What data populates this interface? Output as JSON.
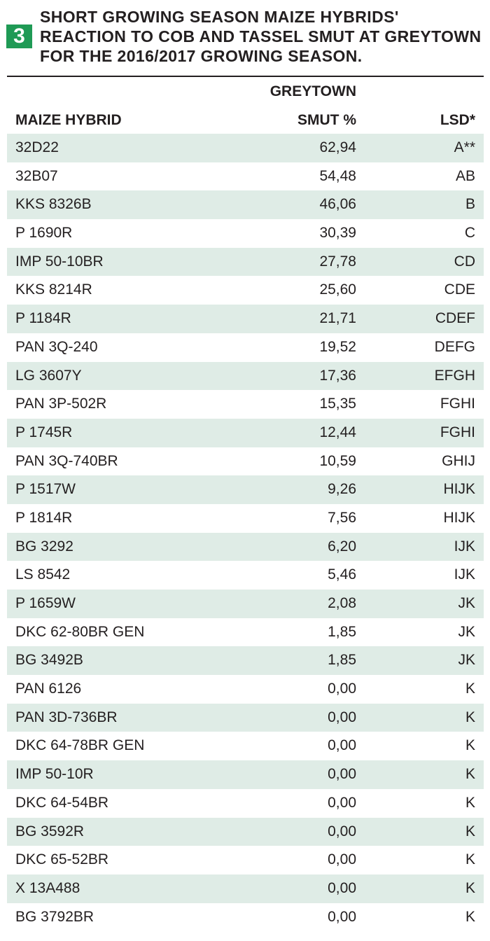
{
  "table": {
    "number": "3",
    "title": "SHORT GROWING SEASON MAIZE HYBRIDS' REACTION TO COB AND TASSEL SMUT AT GREYTOWN FOR THE 2016/2017 GROWING SEASON.",
    "accent_color": "#1f9a55",
    "row_shade_color": "#dfece6",
    "headers": {
      "location": "GREYTOWN",
      "hybrid": "MAIZE HYBRID",
      "smut": "SMUT %",
      "lsd": "LSD*"
    },
    "rows": [
      {
        "hybrid": "32D22",
        "smut": "62,94",
        "lsd": "A**"
      },
      {
        "hybrid": "32B07",
        "smut": "54,48",
        "lsd": "AB"
      },
      {
        "hybrid": "KKS 8326B",
        "smut": "46,06",
        "lsd": "B"
      },
      {
        "hybrid": "P 1690R",
        "smut": "30,39",
        "lsd": "C"
      },
      {
        "hybrid": "IMP 50-10BR",
        "smut": "27,78",
        "lsd": "CD"
      },
      {
        "hybrid": "KKS 8214R",
        "smut": "25,60",
        "lsd": "CDE"
      },
      {
        "hybrid": "P 1184R",
        "smut": "21,71",
        "lsd": "CDEF"
      },
      {
        "hybrid": "PAN 3Q-240",
        "smut": "19,52",
        "lsd": "DEFG"
      },
      {
        "hybrid": "LG 3607Y",
        "smut": "17,36",
        "lsd": "EFGH"
      },
      {
        "hybrid": "PAN 3P-502R",
        "smut": "15,35",
        "lsd": "FGHI"
      },
      {
        "hybrid": "P 1745R",
        "smut": "12,44",
        "lsd": "FGHI"
      },
      {
        "hybrid": "PAN 3Q-740BR",
        "smut": "10,59",
        "lsd": "GHIJ"
      },
      {
        "hybrid": "P 1517W",
        "smut": "9,26",
        "lsd": "HIJK"
      },
      {
        "hybrid": "P 1814R",
        "smut": "7,56",
        "lsd": "HIJK"
      },
      {
        "hybrid": "BG 3292",
        "smut": "6,20",
        "lsd": "IJK"
      },
      {
        "hybrid": "LS 8542",
        "smut": "5,46",
        "lsd": "IJK"
      },
      {
        "hybrid": "P 1659W",
        "smut": "2,08",
        "lsd": "JK"
      },
      {
        "hybrid": "DKC 62-80BR GEN",
        "smut": "1,85",
        "lsd": "JK"
      },
      {
        "hybrid": "BG 3492B",
        "smut": "1,85",
        "lsd": "JK"
      },
      {
        "hybrid": "PAN 6126",
        "smut": "0,00",
        "lsd": "K"
      },
      {
        "hybrid": "PAN 3D-736BR",
        "smut": "0,00",
        "lsd": "K"
      },
      {
        "hybrid": "DKC 64-78BR GEN",
        "smut": "0,00",
        "lsd": "K"
      },
      {
        "hybrid": "IMP 50-10R",
        "smut": "0,00",
        "lsd": "K"
      },
      {
        "hybrid": "DKC 64-54BR",
        "smut": "0,00",
        "lsd": "K"
      },
      {
        "hybrid": "BG 3592R",
        "smut": "0,00",
        "lsd": "K"
      },
      {
        "hybrid": "DKC 65-52BR",
        "smut": "0,00",
        "lsd": "K"
      },
      {
        "hybrid": "X 13A488",
        "smut": "0,00",
        "lsd": "K"
      },
      {
        "hybrid": "BG 3792BR",
        "smut": "0,00",
        "lsd": "K"
      }
    ]
  }
}
